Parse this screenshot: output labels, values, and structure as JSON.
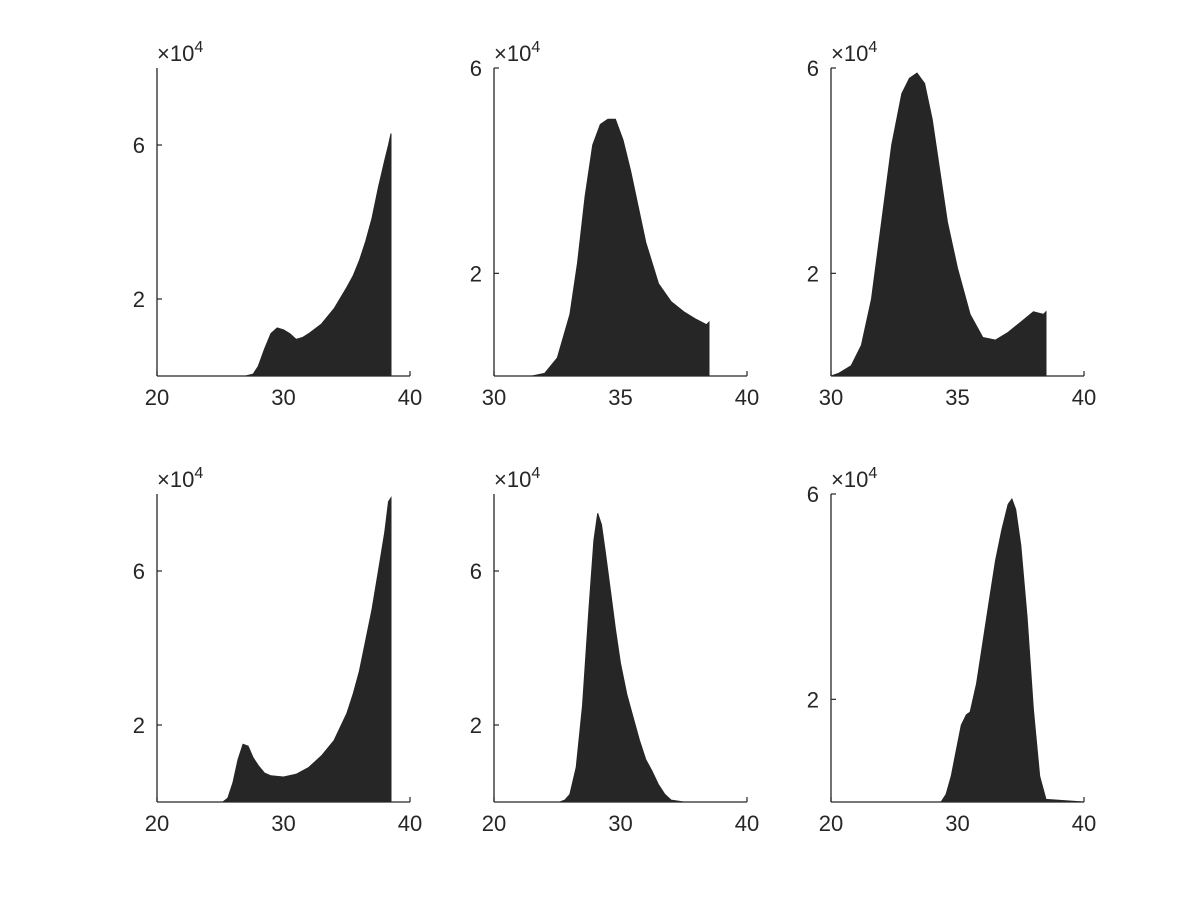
{
  "chart_data": [
    {
      "type": "area",
      "multiplier_base": "×10",
      "multiplier_exp": "4",
      "xlim": [
        20,
        40
      ],
      "ylim": [
        0,
        8
      ],
      "xticks": [
        {
          "value": 20,
          "label": "20"
        },
        {
          "value": 30,
          "label": "30"
        },
        {
          "value": 40,
          "label": "40"
        }
      ],
      "yticks": [
        {
          "value": 2,
          "label": "2"
        },
        {
          "value": 6,
          "label": "6"
        }
      ],
      "fill_color": "#262626",
      "x": [
        20,
        27,
        27.6,
        28,
        28.5,
        29,
        29.5,
        30,
        30.5,
        31,
        31.5,
        32,
        33,
        34,
        35,
        35.5,
        36,
        36.5,
        37,
        37.5,
        38,
        38.3,
        38.5
      ],
      "values": [
        0,
        0,
        0.05,
        0.25,
        0.7,
        1.1,
        1.25,
        1.2,
        1.1,
        0.95,
        1.0,
        1.1,
        1.35,
        1.75,
        2.3,
        2.6,
        3.0,
        3.5,
        4.1,
        4.9,
        5.6,
        6.0,
        6.3
      ]
    },
    {
      "type": "area",
      "multiplier_base": "×10",
      "multiplier_exp": "4",
      "xlim": [
        30,
        40
      ],
      "ylim": [
        0,
        6
      ],
      "xticks": [
        {
          "value": 30,
          "label": "30"
        },
        {
          "value": 35,
          "label": "35"
        },
        {
          "value": 40,
          "label": "40"
        }
      ],
      "yticks": [
        {
          "value": 2,
          "label": "2"
        },
        {
          "value": 6,
          "label": "6"
        }
      ],
      "fill_color": "#262626",
      "x": [
        30,
        31.5,
        32,
        32.5,
        33,
        33.3,
        33.6,
        33.9,
        34.2,
        34.5,
        34.8,
        35.1,
        35.4,
        35.7,
        36,
        36.5,
        37,
        37.5,
        38,
        38.4,
        38.5
      ],
      "values": [
        0,
        0,
        0.05,
        0.35,
        1.2,
        2.2,
        3.5,
        4.5,
        4.9,
        5.0,
        5.0,
        4.6,
        4.0,
        3.3,
        2.6,
        1.8,
        1.45,
        1.25,
        1.1,
        1.0,
        1.05
      ]
    },
    {
      "type": "area",
      "multiplier_base": "×10",
      "multiplier_exp": "4",
      "xlim": [
        30,
        40
      ],
      "ylim": [
        0,
        6
      ],
      "xticks": [
        {
          "value": 30,
          "label": "30"
        },
        {
          "value": 35,
          "label": "35"
        },
        {
          "value": 40,
          "label": "40"
        }
      ],
      "yticks": [
        {
          "value": 2,
          "label": "2"
        },
        {
          "value": 6,
          "label": "6"
        }
      ],
      "fill_color": "#262626",
      "x": [
        30,
        30.3,
        30.8,
        31.2,
        31.6,
        32,
        32.4,
        32.8,
        33.1,
        33.4,
        33.7,
        34,
        34.3,
        34.6,
        35,
        35.5,
        36,
        36.5,
        37,
        37.5,
        38,
        38.4,
        38.5
      ],
      "values": [
        0,
        0.05,
        0.2,
        0.6,
        1.5,
        3.0,
        4.5,
        5.5,
        5.8,
        5.9,
        5.7,
        5.0,
        4.0,
        3.0,
        2.1,
        1.2,
        0.75,
        0.7,
        0.85,
        1.05,
        1.25,
        1.2,
        1.25
      ]
    },
    {
      "type": "area",
      "multiplier_base": "×10",
      "multiplier_exp": "4",
      "xlim": [
        20,
        40
      ],
      "ylim": [
        0,
        8
      ],
      "xticks": [
        {
          "value": 20,
          "label": "20"
        },
        {
          "value": 30,
          "label": "30"
        },
        {
          "value": 40,
          "label": "40"
        }
      ],
      "yticks": [
        {
          "value": 2,
          "label": "2"
        },
        {
          "value": 6,
          "label": "6"
        }
      ],
      "fill_color": "#262626",
      "x": [
        20,
        25.2,
        25.6,
        26,
        26.4,
        26.8,
        27.2,
        27.6,
        28,
        28.5,
        29,
        30,
        31,
        32,
        33,
        34,
        35,
        35.5,
        36,
        36.5,
        37,
        37.5,
        38,
        38.3,
        38.5
      ],
      "values": [
        0,
        0,
        0.1,
        0.5,
        1.1,
        1.5,
        1.45,
        1.15,
        0.95,
        0.75,
        0.68,
        0.65,
        0.72,
        0.9,
        1.2,
        1.6,
        2.3,
        2.8,
        3.4,
        4.2,
        5.0,
        6.0,
        7.0,
        7.8,
        7.9
      ]
    },
    {
      "type": "area",
      "multiplier_base": "×10",
      "multiplier_exp": "4",
      "xlim": [
        20,
        40
      ],
      "ylim": [
        0,
        8
      ],
      "xticks": [
        {
          "value": 20,
          "label": "20"
        },
        {
          "value": 30,
          "label": "30"
        },
        {
          "value": 40,
          "label": "40"
        }
      ],
      "yticks": [
        {
          "value": 2,
          "label": "2"
        },
        {
          "value": 6,
          "label": "6"
        }
      ],
      "fill_color": "#262626",
      "x": [
        20,
        25.2,
        25.6,
        26,
        26.5,
        27,
        27.5,
        27.9,
        28.2,
        28.5,
        28.8,
        29.2,
        29.6,
        30,
        30.5,
        31,
        31.5,
        32,
        32.5,
        33,
        33.5,
        34,
        35,
        40
      ],
      "values": [
        0,
        0,
        0.05,
        0.2,
        0.9,
        2.5,
        5.0,
        6.8,
        7.5,
        7.2,
        6.5,
        5.5,
        4.5,
        3.6,
        2.8,
        2.2,
        1.6,
        1.1,
        0.8,
        0.45,
        0.2,
        0.05,
        0,
        0
      ]
    },
    {
      "type": "area",
      "multiplier_base": "×10",
      "multiplier_exp": "4",
      "xlim": [
        20,
        40
      ],
      "ylim": [
        0,
        6
      ],
      "xticks": [
        {
          "value": 20,
          "label": "20"
        },
        {
          "value": 30,
          "label": "30"
        },
        {
          "value": 40,
          "label": "40"
        }
      ],
      "yticks": [
        {
          "value": 2,
          "label": "2"
        },
        {
          "value": 6,
          "label": "6"
        }
      ],
      "fill_color": "#262626",
      "x": [
        20,
        28.7,
        29.1,
        29.5,
        29.9,
        30.3,
        30.7,
        31,
        31.5,
        32,
        32.5,
        33,
        33.5,
        34,
        34.3,
        34.6,
        35,
        35.5,
        36,
        36.5,
        37,
        40
      ],
      "values": [
        0,
        0,
        0.15,
        0.5,
        1.0,
        1.5,
        1.7,
        1.75,
        2.3,
        3.1,
        3.9,
        4.7,
        5.3,
        5.8,
        5.9,
        5.7,
        5.0,
        3.6,
        1.8,
        0.5,
        0.05,
        0
      ]
    }
  ]
}
